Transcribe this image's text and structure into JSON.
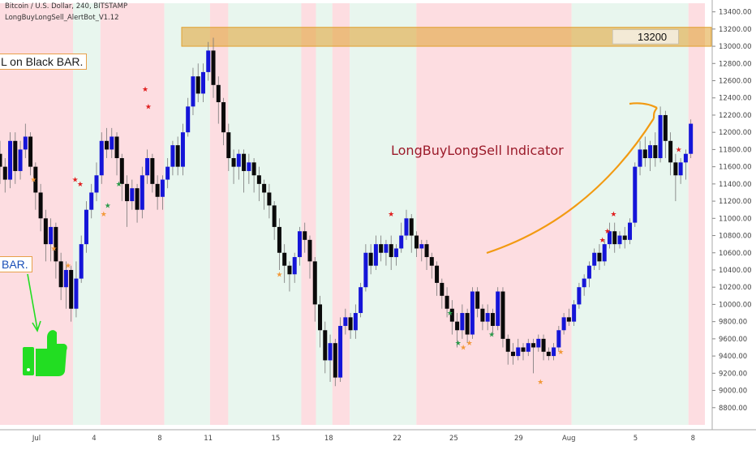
{
  "header": {
    "symbol_line": "Bitcoin / U.S. Dollar, 240, BITSTAMP",
    "indicator_line": "LongBuyLongSell_AlertBot_V1.12"
  },
  "annotations": {
    "callout_top": "L on Black BAR.",
    "callout_left": "BAR.",
    "indicator_label": "LongBuyLongSell Indicator",
    "resistance_label": "13200"
  },
  "colors": {
    "bull": "#1515d8",
    "bear": "#0a0a0a",
    "sell_zone": "#fddde1",
    "buy_zone": "#e8f6ee",
    "resistance": "#e0a030",
    "arrow_orange": "#f29a11",
    "arrow_green": "#22dd22",
    "star_red": "#e01e1e",
    "star_orange": "#f2993a",
    "star_green": "#2a9a4a"
  },
  "icons": [
    "thumbs-up-icon",
    "star-icon",
    "arrow-icon"
  ],
  "chart_data": {
    "type": "candlestick",
    "ylim": [
      8600,
      13500
    ],
    "y_ticks": [
      13400,
      13200,
      13000,
      12800,
      12600,
      12400,
      12200,
      12000,
      11800,
      11600,
      11400,
      11200,
      11000,
      10800,
      10600,
      10400,
      10200,
      10000,
      9800,
      9600,
      9400,
      9200,
      9000,
      8800
    ],
    "x_ticks": [
      "Jul",
      "4",
      "8",
      "11",
      "15",
      "18",
      "22",
      "25",
      "29",
      "Aug",
      "5",
      "8"
    ],
    "zones": [
      {
        "type": "sell",
        "from": 0,
        "to": 8
      },
      {
        "type": "buy",
        "from": 8,
        "to": 11
      },
      {
        "type": "sell",
        "from": 11,
        "to": 18
      },
      {
        "type": "buy",
        "from": 18,
        "to": 23
      },
      {
        "type": "sell",
        "from": 23,
        "to": 25
      },
      {
        "type": "buy",
        "from": 25,
        "to": 33
      },
      {
        "type": "sell",
        "from": 33,
        "to": 34.6
      },
      {
        "type": "buy",
        "from": 34.6,
        "to": 36.4
      },
      {
        "type": "sell",
        "from": 36.4,
        "to": 38.3
      },
      {
        "type": "buy",
        "from": 38.3,
        "to": 45.6
      },
      {
        "type": "sell",
        "from": 45.6,
        "to": 62.6
      },
      {
        "type": "buy",
        "from": 62.6,
        "to": 75.4
      },
      {
        "type": "sell",
        "from": 75.4,
        "to": 77.2
      }
    ],
    "resistance_zone": {
      "from": 13000,
      "to": 13220,
      "label": "13200"
    },
    "candles": [
      {
        "t": 0,
        "o": 11750,
        "c": 11600,
        "h": 11900,
        "l": 11400
      },
      {
        "t": 0.5,
        "o": 11600,
        "c": 11450,
        "h": 11700,
        "l": 11300
      },
      {
        "t": 1,
        "o": 11450,
        "c": 11900,
        "h": 12000,
        "l": 11350
      },
      {
        "t": 1.5,
        "o": 11900,
        "c": 11550,
        "h": 12000,
        "l": 11400
      },
      {
        "t": 2,
        "o": 11550,
        "c": 11800,
        "h": 11900,
        "l": 11450
      },
      {
        "t": 2.5,
        "o": 11800,
        "c": 11950,
        "h": 12100,
        "l": 11700
      },
      {
        "t": 3,
        "o": 11950,
        "c": 11600,
        "h": 12000,
        "l": 11500
      },
      {
        "t": 3.5,
        "o": 11600,
        "c": 11300,
        "h": 11650,
        "l": 11100
      },
      {
        "t": 4,
        "o": 11300,
        "c": 11000,
        "h": 11400,
        "l": 10850
      },
      {
        "t": 4.5,
        "o": 11000,
        "c": 10700,
        "h": 11100,
        "l": 10500
      },
      {
        "t": 5,
        "o": 10700,
        "c": 10900,
        "h": 11000,
        "l": 10500
      },
      {
        "t": 5.5,
        "o": 10900,
        "c": 10500,
        "h": 10950,
        "l": 10300
      },
      {
        "t": 6,
        "o": 10500,
        "c": 10200,
        "h": 10600,
        "l": 10050
      },
      {
        "t": 6.5,
        "o": 10200,
        "c": 10400,
        "h": 10500,
        "l": 9950
      },
      {
        "t": 7,
        "o": 10400,
        "c": 9950,
        "h": 10450,
        "l": 9800
      },
      {
        "t": 7.5,
        "o": 9950,
        "c": 10300,
        "h": 10500,
        "l": 9850
      },
      {
        "t": 8,
        "o": 10300,
        "c": 10700,
        "h": 10800,
        "l": 10250
      },
      {
        "t": 8.5,
        "o": 10700,
        "c": 11100,
        "h": 11200,
        "l": 10600
      },
      {
        "t": 9,
        "o": 11100,
        "c": 11300,
        "h": 11400,
        "l": 11000
      },
      {
        "t": 9.5,
        "o": 11300,
        "c": 11500,
        "h": 11650,
        "l": 11200
      },
      {
        "t": 10,
        "o": 11500,
        "c": 11900,
        "h": 12000,
        "l": 11400
      },
      {
        "t": 10.5,
        "o": 11900,
        "c": 11800,
        "h": 12050,
        "l": 11700
      },
      {
        "t": 11,
        "o": 11800,
        "c": 11950,
        "h": 12050,
        "l": 11700
      },
      {
        "t": 11.5,
        "o": 11950,
        "c": 11700,
        "h": 12000,
        "l": 11500
      },
      {
        "t": 12,
        "o": 11700,
        "c": 11400,
        "h": 11750,
        "l": 11200
      },
      {
        "t": 12.5,
        "o": 11400,
        "c": 11200,
        "h": 11500,
        "l": 10900
      },
      {
        "t": 13,
        "o": 11200,
        "c": 11350,
        "h": 11450,
        "l": 11100
      },
      {
        "t": 13.5,
        "o": 11350,
        "c": 11100,
        "h": 11400,
        "l": 10950
      },
      {
        "t": 14,
        "o": 11100,
        "c": 11500,
        "h": 11600,
        "l": 11000
      },
      {
        "t": 14.5,
        "o": 11500,
        "c": 11700,
        "h": 11800,
        "l": 11400
      },
      {
        "t": 15,
        "o": 11700,
        "c": 11400,
        "h": 11750,
        "l": 11300
      },
      {
        "t": 15.5,
        "o": 11400,
        "c": 11250,
        "h": 11500,
        "l": 11100
      },
      {
        "t": 16,
        "o": 11250,
        "c": 11450,
        "h": 11500,
        "l": 11100
      },
      {
        "t": 16.5,
        "o": 11450,
        "c": 11600,
        "h": 11700,
        "l": 11350
      },
      {
        "t": 17,
        "o": 11600,
        "c": 11850,
        "h": 11900,
        "l": 11500
      },
      {
        "t": 17.5,
        "o": 11850,
        "c": 11600,
        "h": 11950,
        "l": 11500
      },
      {
        "t": 18,
        "o": 11600,
        "c": 12000,
        "h": 12100,
        "l": 11500
      },
      {
        "t": 18.5,
        "o": 12000,
        "c": 12300,
        "h": 12400,
        "l": 11950
      },
      {
        "t": 19,
        "o": 12300,
        "c": 12650,
        "h": 12750,
        "l": 12200
      },
      {
        "t": 19.5,
        "o": 12650,
        "c": 12450,
        "h": 12800,
        "l": 12350
      },
      {
        "t": 20,
        "o": 12450,
        "c": 12700,
        "h": 12800,
        "l": 12350
      },
      {
        "t": 20.5,
        "o": 12700,
        "c": 12950,
        "h": 13050,
        "l": 12600
      },
      {
        "t": 21,
        "o": 12950,
        "c": 12550,
        "h": 13100,
        "l": 12400
      },
      {
        "t": 21.5,
        "o": 12550,
        "c": 12350,
        "h": 12650,
        "l": 12100
      },
      {
        "t": 22,
        "o": 12350,
        "c": 12000,
        "h": 12400,
        "l": 11850
      },
      {
        "t": 22.5,
        "o": 12000,
        "c": 11700,
        "h": 12100,
        "l": 11550
      },
      {
        "t": 23,
        "o": 11700,
        "c": 11600,
        "h": 11800,
        "l": 11400
      },
      {
        "t": 23.5,
        "o": 11600,
        "c": 11750,
        "h": 11800,
        "l": 11450
      },
      {
        "t": 24,
        "o": 11750,
        "c": 11550,
        "h": 11800,
        "l": 11300
      },
      {
        "t": 24.5,
        "o": 11550,
        "c": 11650,
        "h": 11750,
        "l": 11400
      },
      {
        "t": 25,
        "o": 11650,
        "c": 11500,
        "h": 11700,
        "l": 11300
      },
      {
        "t": 25.5,
        "o": 11500,
        "c": 11400,
        "h": 11600,
        "l": 11200
      },
      {
        "t": 26,
        "o": 11400,
        "c": 11300,
        "h": 11450,
        "l": 11100
      },
      {
        "t": 26.5,
        "o": 11300,
        "c": 11150,
        "h": 11400,
        "l": 11000
      },
      {
        "t": 27,
        "o": 11150,
        "c": 10900,
        "h": 11200,
        "l": 10750
      },
      {
        "t": 27.5,
        "o": 10900,
        "c": 10600,
        "h": 11000,
        "l": 10400
      },
      {
        "t": 28,
        "o": 10600,
        "c": 10450,
        "h": 10700,
        "l": 10250
      },
      {
        "t": 28.5,
        "o": 10450,
        "c": 10350,
        "h": 10500,
        "l": 10150
      },
      {
        "t": 29,
        "o": 10350,
        "c": 10550,
        "h": 10600,
        "l": 10250
      },
      {
        "t": 29.5,
        "o": 10550,
        "c": 10850,
        "h": 10900,
        "l": 10450
      },
      {
        "t": 30,
        "o": 10850,
        "c": 10750,
        "h": 10950,
        "l": 10600
      },
      {
        "t": 30.5,
        "o": 10750,
        "c": 10500,
        "h": 10800,
        "l": 10300
      },
      {
        "t": 31,
        "o": 10500,
        "c": 10000,
        "h": 10550,
        "l": 9800
      },
      {
        "t": 31.5,
        "o": 10000,
        "c": 9700,
        "h": 10100,
        "l": 9500
      },
      {
        "t": 32,
        "o": 9700,
        "c": 9350,
        "h": 9800,
        "l": 9200
      },
      {
        "t": 32.5,
        "o": 9350,
        "c": 9550,
        "h": 9650,
        "l": 9100
      },
      {
        "t": 33,
        "o": 9550,
        "c": 9150,
        "h": 9600,
        "l": 9050
      },
      {
        "t": 33.5,
        "o": 9150,
        "c": 9750,
        "h": 9850,
        "l": 9100
      },
      {
        "t": 34,
        "o": 9750,
        "c": 9850,
        "h": 9950,
        "l": 9650
      },
      {
        "t": 34.5,
        "o": 9850,
        "c": 9700,
        "h": 9900,
        "l": 9600
      },
      {
        "t": 35,
        "o": 9700,
        "c": 9900,
        "h": 10000,
        "l": 9600
      },
      {
        "t": 35.5,
        "o": 9900,
        "c": 10200,
        "h": 10250,
        "l": 9850
      },
      {
        "t": 36,
        "o": 10200,
        "c": 10600,
        "h": 10700,
        "l": 10150
      },
      {
        "t": 36.5,
        "o": 10600,
        "c": 10450,
        "h": 10700,
        "l": 10350
      },
      {
        "t": 37,
        "o": 10450,
        "c": 10700,
        "h": 10800,
        "l": 10400
      },
      {
        "t": 37.5,
        "o": 10700,
        "c": 10600,
        "h": 10800,
        "l": 10500
      },
      {
        "t": 38,
        "o": 10600,
        "c": 10700,
        "h": 10750,
        "l": 10450
      },
      {
        "t": 38.5,
        "o": 10700,
        "c": 10550,
        "h": 10800,
        "l": 10400
      },
      {
        "t": 39,
        "o": 10550,
        "c": 10650,
        "h": 10700,
        "l": 10450
      },
      {
        "t": 39.5,
        "o": 10650,
        "c": 10800,
        "h": 10950,
        "l": 10600
      },
      {
        "t": 40,
        "o": 10800,
        "c": 11000,
        "h": 11100,
        "l": 10750
      },
      {
        "t": 40.5,
        "o": 11000,
        "c": 10800,
        "h": 11050,
        "l": 10600
      },
      {
        "t": 41,
        "o": 10800,
        "c": 10650,
        "h": 10850,
        "l": 10550
      },
      {
        "t": 41.5,
        "o": 10650,
        "c": 10700,
        "h": 10750,
        "l": 10500
      },
      {
        "t": 42,
        "o": 10700,
        "c": 10550,
        "h": 10750,
        "l": 10400
      },
      {
        "t": 42.5,
        "o": 10550,
        "c": 10450,
        "h": 10600,
        "l": 10300
      },
      {
        "t": 43,
        "o": 10450,
        "c": 10250,
        "h": 10500,
        "l": 10100
      },
      {
        "t": 43.5,
        "o": 10250,
        "c": 10100,
        "h": 10300,
        "l": 9950
      },
      {
        "t": 44,
        "o": 10100,
        "c": 9950,
        "h": 10200,
        "l": 9850
      },
      {
        "t": 44.5,
        "o": 9950,
        "c": 9800,
        "h": 10050,
        "l": 9650
      },
      {
        "t": 45,
        "o": 9800,
        "c": 9700,
        "h": 9900,
        "l": 9500
      },
      {
        "t": 45.5,
        "o": 9700,
        "c": 9900,
        "h": 10000,
        "l": 9600
      },
      {
        "t": 46,
        "o": 9900,
        "c": 9650,
        "h": 9950,
        "l": 9550
      },
      {
        "t": 46.5,
        "o": 9650,
        "c": 10150,
        "h": 10200,
        "l": 9600
      },
      {
        "t": 47,
        "o": 10150,
        "c": 9950,
        "h": 10200,
        "l": 9850
      },
      {
        "t": 47.5,
        "o": 9950,
        "c": 9800,
        "h": 10000,
        "l": 9700
      },
      {
        "t": 48,
        "o": 9800,
        "c": 9900,
        "h": 10000,
        "l": 9700
      },
      {
        "t": 48.5,
        "o": 9900,
        "c": 9750,
        "h": 9950,
        "l": 9650
      },
      {
        "t": 49,
        "o": 9750,
        "c": 10150,
        "h": 10200,
        "l": 9700
      },
      {
        "t": 49.5,
        "o": 10150,
        "c": 9600,
        "h": 10200,
        "l": 9500
      },
      {
        "t": 50,
        "o": 9600,
        "c": 9450,
        "h": 9650,
        "l": 9300
      },
      {
        "t": 50.5,
        "o": 9450,
        "c": 9400,
        "h": 9550,
        "l": 9300
      },
      {
        "t": 51,
        "o": 9400,
        "c": 9500,
        "h": 9600,
        "l": 9350
      },
      {
        "t": 51.5,
        "o": 9500,
        "c": 9450,
        "h": 9550,
        "l": 9350
      },
      {
        "t": 52,
        "o": 9450,
        "c": 9550,
        "h": 9600,
        "l": 9400
      },
      {
        "t": 52.5,
        "o": 9550,
        "c": 9500,
        "h": 9600,
        "l": 9200
      },
      {
        "t": 53,
        "o": 9500,
        "c": 9600,
        "h": 9650,
        "l": 9450
      },
      {
        "t": 53.5,
        "o": 9600,
        "c": 9450,
        "h": 9650,
        "l": 9350
      },
      {
        "t": 54,
        "o": 9450,
        "c": 9400,
        "h": 9500,
        "l": 9350
      },
      {
        "t": 54.5,
        "o": 9400,
        "c": 9500,
        "h": 9550,
        "l": 9350
      },
      {
        "t": 55,
        "o": 9500,
        "c": 9700,
        "h": 9750,
        "l": 9450
      },
      {
        "t": 55.5,
        "o": 9700,
        "c": 9850,
        "h": 9900,
        "l": 9650
      },
      {
        "t": 56,
        "o": 9850,
        "c": 9800,
        "h": 9950,
        "l": 9750
      },
      {
        "t": 56.5,
        "o": 9800,
        "c": 10000,
        "h": 10050,
        "l": 9750
      },
      {
        "t": 57,
        "o": 10000,
        "c": 10200,
        "h": 10250,
        "l": 9950
      },
      {
        "t": 57.5,
        "o": 10200,
        "c": 10300,
        "h": 10350,
        "l": 10100
      },
      {
        "t": 58,
        "o": 10300,
        "c": 10450,
        "h": 10500,
        "l": 10200
      },
      {
        "t": 58.5,
        "o": 10450,
        "c": 10600,
        "h": 10650,
        "l": 10400
      },
      {
        "t": 59,
        "o": 10600,
        "c": 10500,
        "h": 10700,
        "l": 10400
      },
      {
        "t": 59.5,
        "o": 10500,
        "c": 10700,
        "h": 10750,
        "l": 10450
      },
      {
        "t": 60,
        "o": 10700,
        "c": 10850,
        "h": 10950,
        "l": 10650
      },
      {
        "t": 60.5,
        "o": 10850,
        "c": 10700,
        "h": 10950,
        "l": 10600
      },
      {
        "t": 61,
        "o": 10700,
        "c": 10800,
        "h": 10850,
        "l": 10650
      },
      {
        "t": 61.5,
        "o": 10800,
        "c": 10750,
        "h": 10900,
        "l": 10650
      },
      {
        "t": 62,
        "o": 10750,
        "c": 10950,
        "h": 11000,
        "l": 10700
      },
      {
        "t": 62.5,
        "o": 10950,
        "c": 11600,
        "h": 11650,
        "l": 10900
      },
      {
        "t": 63,
        "o": 11600,
        "c": 11800,
        "h": 11900,
        "l": 11500
      },
      {
        "t": 63.5,
        "o": 11800,
        "c": 11700,
        "h": 11950,
        "l": 11600
      },
      {
        "t": 64,
        "o": 11700,
        "c": 11850,
        "h": 11900,
        "l": 11550
      },
      {
        "t": 64.5,
        "o": 11850,
        "c": 11700,
        "h": 12000,
        "l": 11600
      },
      {
        "t": 65,
        "o": 11700,
        "c": 12200,
        "h": 12300,
        "l": 11650
      },
      {
        "t": 65.5,
        "o": 12200,
        "c": 11900,
        "h": 12250,
        "l": 11700
      },
      {
        "t": 66,
        "o": 11900,
        "c": 11650,
        "h": 12000,
        "l": 11500
      },
      {
        "t": 66.5,
        "o": 11650,
        "c": 11500,
        "h": 11750,
        "l": 11200
      },
      {
        "t": 67,
        "o": 11500,
        "c": 11650,
        "h": 11700,
        "l": 11400
      },
      {
        "t": 67.5,
        "o": 11650,
        "c": 11750,
        "h": 11800,
        "l": 11450
      },
      {
        "t": 68,
        "o": 11750,
        "c": 12100,
        "h": 12150,
        "l": 11700
      }
    ],
    "stars": [
      {
        "t": 7.4,
        "price": 11450,
        "color": "red"
      },
      {
        "t": 7.9,
        "price": 11400,
        "color": "red"
      },
      {
        "t": 10.6,
        "price": 11150,
        "color": "green"
      },
      {
        "t": 10.2,
        "price": 11050,
        "color": "orange"
      },
      {
        "t": 11.7,
        "price": 11400,
        "color": "green"
      },
      {
        "t": 14.3,
        "price": 12500,
        "color": "red"
      },
      {
        "t": 14.6,
        "price": 12300,
        "color": "red"
      },
      {
        "t": 27.5,
        "price": 10350,
        "color": "orange"
      },
      {
        "t": 38.5,
        "price": 11050,
        "color": "red"
      },
      {
        "t": 44.3,
        "price": 9900,
        "color": "green"
      },
      {
        "t": 45.1,
        "price": 9550,
        "color": "green"
      },
      {
        "t": 45.6,
        "price": 9500,
        "color": "orange"
      },
      {
        "t": 46.2,
        "price": 9550,
        "color": "orange"
      },
      {
        "t": 48.4,
        "price": 9650,
        "color": "green"
      },
      {
        "t": 53.2,
        "price": 9100,
        "color": "orange"
      },
      {
        "t": 55.2,
        "price": 9450,
        "color": "orange"
      },
      {
        "t": 59.3,
        "price": 10750,
        "color": "red"
      },
      {
        "t": 59.8,
        "price": 10850,
        "color": "red"
      },
      {
        "t": 60.4,
        "price": 11050,
        "color": "red"
      },
      {
        "t": 66.8,
        "price": 11800,
        "color": "red"
      },
      {
        "t": 3.3,
        "price": 11450,
        "color": "orange"
      },
      {
        "t": 5.3,
        "price": 10650,
        "color": "orange"
      },
      {
        "t": 6.7,
        "price": 10450,
        "color": "orange"
      }
    ]
  }
}
